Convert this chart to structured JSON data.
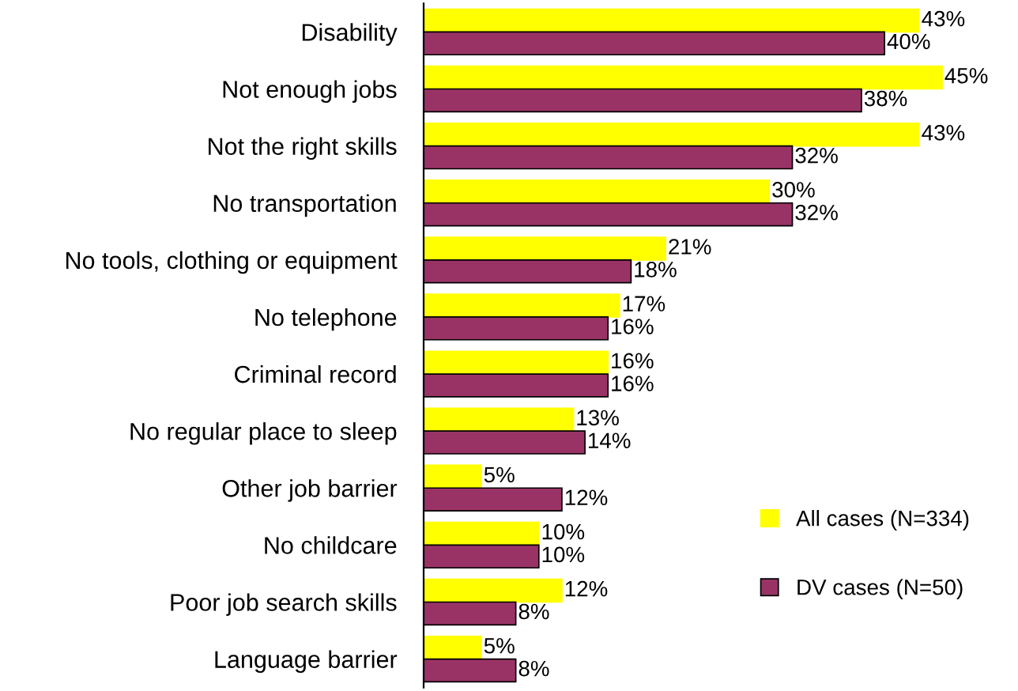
{
  "chart_data": {
    "type": "bar",
    "orientation": "horizontal",
    "categories": [
      "Disability",
      "Not enough jobs",
      "Not the right skills",
      "No transportation",
      "No tools, clothing or equipment",
      "No telephone",
      "Criminal record",
      "No regular place to sleep",
      "Other job barrier",
      "No childcare",
      "Poor job search skills",
      "Language barrier"
    ],
    "series": [
      {
        "name": "All cases (N=334)",
        "color": "#ffff00",
        "values": [
          43,
          45,
          43,
          30,
          21,
          17,
          16,
          13,
          5,
          10,
          12,
          5
        ],
        "value_labels": [
          "43%",
          "45%",
          "43%",
          "30%",
          "21%",
          "17%",
          "16%",
          "13%",
          "5%",
          "10%",
          "12%",
          "5%"
        ]
      },
      {
        "name": "DV cases (N=50)",
        "color": "#993366",
        "values": [
          40,
          38,
          32,
          32,
          18,
          16,
          16,
          14,
          12,
          10,
          8,
          8
        ],
        "value_labels": [
          "40%",
          "38%",
          "32%",
          "32%",
          "18%",
          "16%",
          "16%",
          "14%",
          "12%",
          "10%",
          "8%",
          "8%"
        ]
      }
    ],
    "legend": "bottom right",
    "grid": false,
    "tick_labels": "y"
  }
}
